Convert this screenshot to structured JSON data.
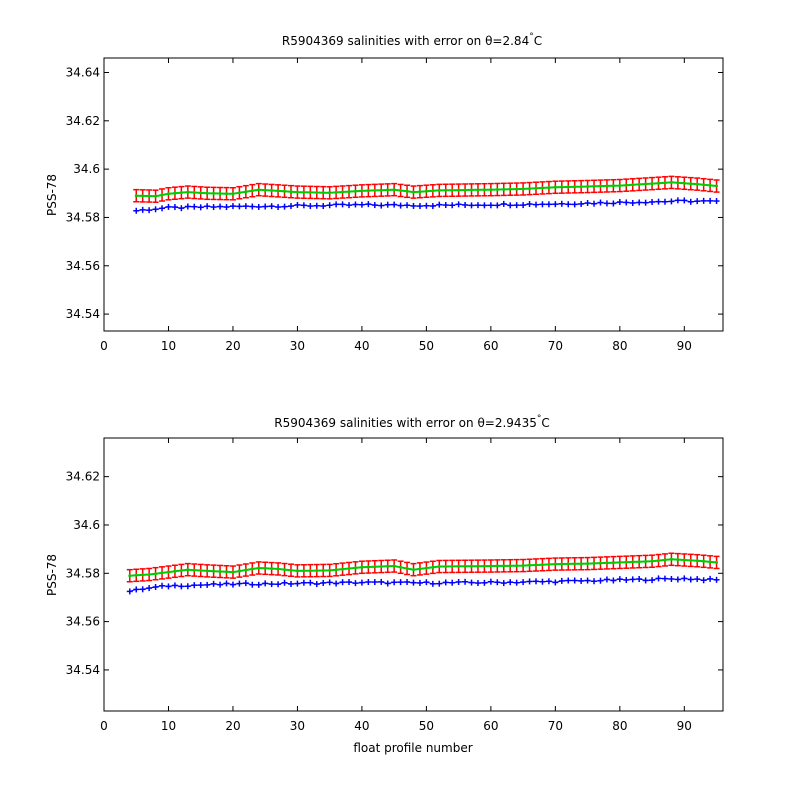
{
  "figure": {
    "background": "#ffffff"
  },
  "chart_data": [
    {
      "type": "line",
      "title_prefix": "R5904369 salinities with error on θ=",
      "title_value": "2.84",
      "title_unit": "C",
      "xlabel": "",
      "ylabel": "PSS-78",
      "xlim": [
        0,
        96
      ],
      "ylim": [
        34.533,
        34.646
      ],
      "xticks": [
        0,
        10,
        20,
        30,
        40,
        50,
        60,
        70,
        80,
        90
      ],
      "yticks": [
        34.54,
        34.56,
        34.58,
        34.6,
        34.62,
        34.64
      ],
      "ytick_labels": [
        "34.54",
        "34.56",
        "34.58",
        "34.6",
        "34.62",
        "34.64"
      ],
      "x_start": 5,
      "x_end": 95,
      "raw": {
        "color": "#0000ff",
        "marker": "+",
        "knots": [
          [
            5,
            34.5828
          ],
          [
            10,
            34.584
          ],
          [
            20,
            34.5845
          ],
          [
            30,
            34.5848
          ],
          [
            40,
            34.5852
          ],
          [
            50,
            34.585
          ],
          [
            60,
            34.5853
          ],
          [
            70,
            34.5856
          ],
          [
            80,
            34.5862
          ],
          [
            90,
            34.5868
          ],
          [
            95,
            34.5866
          ]
        ]
      },
      "calibrated": {
        "color": "#00cc00",
        "error_color": "#ff0000",
        "error": 0.0025,
        "knots": [
          [
            5,
            34.589
          ],
          [
            8,
            34.5888
          ],
          [
            10,
            34.5898
          ],
          [
            13,
            34.5905
          ],
          [
            16,
            34.59
          ],
          [
            20,
            34.5898
          ],
          [
            24,
            34.5915
          ],
          [
            27,
            34.591
          ],
          [
            30,
            34.5905
          ],
          [
            35,
            34.5902
          ],
          [
            40,
            34.591
          ],
          [
            45,
            34.5915
          ],
          [
            48,
            34.5905
          ],
          [
            52,
            34.5912
          ],
          [
            60,
            34.5915
          ],
          [
            65,
            34.5918
          ],
          [
            70,
            34.5925
          ],
          [
            75,
            34.5928
          ],
          [
            80,
            34.5932
          ],
          [
            85,
            34.594
          ],
          [
            88,
            34.5945
          ],
          [
            92,
            34.5938
          ],
          [
            95,
            34.593
          ]
        ]
      }
    },
    {
      "type": "line",
      "title_prefix": "R5904369 salinities with error on θ=",
      "title_value": "2.9435",
      "title_unit": "C",
      "xlabel": "float profile number",
      "ylabel": "PSS-78",
      "xlim": [
        0,
        96
      ],
      "ylim": [
        34.523,
        34.636
      ],
      "xticks": [
        0,
        10,
        20,
        30,
        40,
        50,
        60,
        70,
        80,
        90
      ],
      "yticks": [
        34.54,
        34.56,
        34.58,
        34.6,
        34.62
      ],
      "ytick_labels": [
        "34.54",
        "34.56",
        "34.58",
        "34.6",
        "34.62"
      ],
      "x_start": 4,
      "x_end": 95,
      "raw": {
        "color": "#0000ff",
        "marker": "+",
        "knots": [
          [
            4,
            34.5725
          ],
          [
            6,
            34.5735
          ],
          [
            10,
            34.5748
          ],
          [
            20,
            34.5755
          ],
          [
            30,
            34.5758
          ],
          [
            40,
            34.5762
          ],
          [
            50,
            34.576
          ],
          [
            60,
            34.5762
          ],
          [
            70,
            34.5766
          ],
          [
            80,
            34.5772
          ],
          [
            90,
            34.5778
          ],
          [
            95,
            34.5772
          ]
        ]
      },
      "calibrated": {
        "color": "#00cc00",
        "error_color": "#ff0000",
        "error": 0.0025,
        "knots": [
          [
            4,
            34.579
          ],
          [
            7,
            34.5795
          ],
          [
            10,
            34.5805
          ],
          [
            13,
            34.5815
          ],
          [
            16,
            34.581
          ],
          [
            20,
            34.5805
          ],
          [
            24,
            34.5822
          ],
          [
            27,
            34.5818
          ],
          [
            30,
            34.581
          ],
          [
            35,
            34.5812
          ],
          [
            40,
            34.5825
          ],
          [
            45,
            34.583
          ],
          [
            48,
            34.5815
          ],
          [
            52,
            34.5828
          ],
          [
            60,
            34.583
          ],
          [
            65,
            34.5832
          ],
          [
            70,
            34.5838
          ],
          [
            75,
            34.584
          ],
          [
            80,
            34.5845
          ],
          [
            85,
            34.585
          ],
          [
            88,
            34.5858
          ],
          [
            92,
            34.5852
          ],
          [
            95,
            34.5845
          ]
        ]
      }
    }
  ]
}
